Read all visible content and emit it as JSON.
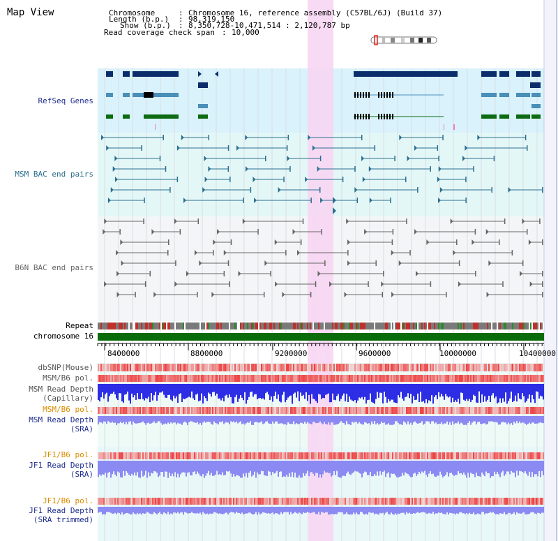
{
  "title": "Map View",
  "info": {
    "chromosome_label": "Chromosome",
    "chromosome_value": "Chromosome 16, reference assembly (C57BL/6J) (Build 37)",
    "length_label": "Length (b.p.)",
    "length_value": "98,319,150",
    "show_label": "Show (b.p.)",
    "show_value": "8,350,728-10,471,514 : 2,120,787 bp",
    "span_label": "Read coverage check span",
    "span_value": "10,000"
  },
  "tracks": {
    "refseq": "RefSeq Genes",
    "msm_bac": "MSM BAC end pairs",
    "b6n_bac": "B6N BAC end pairs",
    "repeat": "Repeat",
    "chromosome": "chromosome 16",
    "dbsnp": "dbSNP(Mouse)",
    "msm_b6_pol": "MSM/B6 pol.",
    "msm_read_depth": "MSM Read Depth",
    "capillary": "(Capillary)",
    "msm_b6_pol2": "MSM/B6 pol.",
    "msm_read_depth_sra": "MSM Read Depth",
    "sra": "(SRA)",
    "jf1_b6_pol": "JF1/B6 pol.",
    "jf1_read_depth": "JF1 Read Depth",
    "sra2": "(SRA)",
    "jf1_b6_pol2": "JF1/B6 pol.",
    "jf1_read_depth2": "JF1 Read Depth",
    "sra_trimmed": "(SRA trimmed)"
  },
  "axis": {
    "ticks": [
      "8400000",
      "8800000",
      "9200000",
      "9600000",
      "10000000",
      "10400000"
    ]
  },
  "colors": {
    "highlight": "#f7d6f3",
    "refseq_bg": "#d9f2fb",
    "msm_bg": "#e4f7f7",
    "b6n_bg": "#f4f5f6",
    "gene_navy": "#0b2d6b",
    "gene_steel": "#4a8fb8",
    "gene_green": "#0c6b12",
    "msm_pair": "#2a6f8f",
    "b6n_pair": "#666666",
    "chromosome_bar": "#0a6b0a",
    "depth_blue": "#2d2de6",
    "depth_lavender": "#8a8af2",
    "label_navy": "#1e2d8f",
    "label_orange": "#d98c00",
    "label_gray": "#555555"
  }
}
